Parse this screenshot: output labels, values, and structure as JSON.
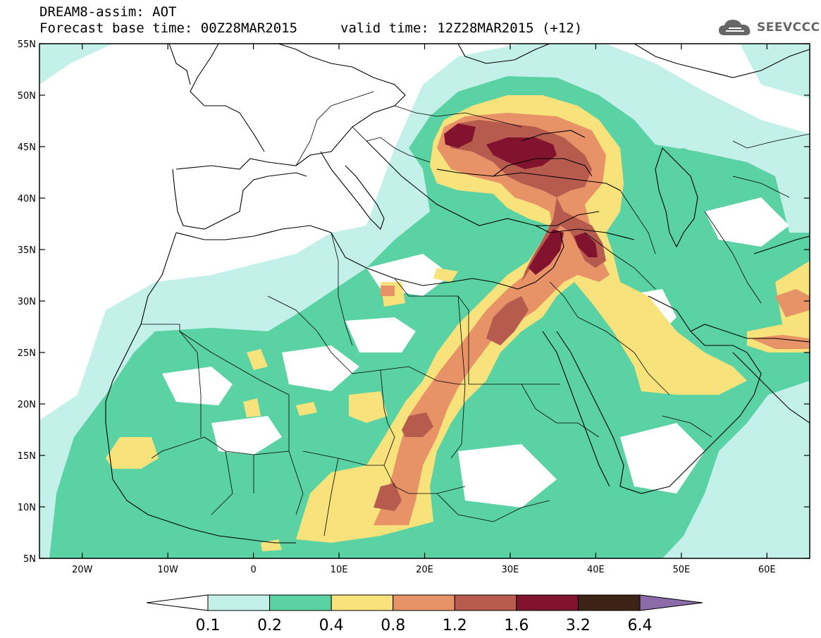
{
  "header": {
    "title": "DREAM8-assim: AOT",
    "base_time": "Forecast base time: 00Z28MAR2015",
    "valid_time": "valid time: 12Z28MAR2015 (+12)"
  },
  "logo": {
    "text": "SEEVCCC",
    "icon": "cloud-icon"
  },
  "map": {
    "lon_range": [
      -25,
      65
    ],
    "lat_range": [
      5,
      55
    ],
    "lat_ticks": [
      "5N",
      "10N",
      "15N",
      "20N",
      "25N",
      "30N",
      "35N",
      "40N",
      "45N",
      "50N",
      "55N"
    ],
    "lon_ticks": [
      "20W",
      "10W",
      "0",
      "10E",
      "20E",
      "30E",
      "40E",
      "50E",
      "60E"
    ]
  },
  "colorbar": {
    "labels": [
      "0.1",
      "0.2",
      "0.4",
      "0.8",
      "1.2",
      "1.6",
      "3.2",
      "6.4"
    ],
    "colors": [
      "#c3f0e8",
      "#5ad2a3",
      "#f7e27c",
      "#e89367",
      "#b65b4e",
      "#82132e",
      "#3d2315",
      "#8c6ba8"
    ],
    "low_color": "#ffffff"
  },
  "colors": {
    "land_border": "#000000",
    "background": "#ffffff"
  }
}
